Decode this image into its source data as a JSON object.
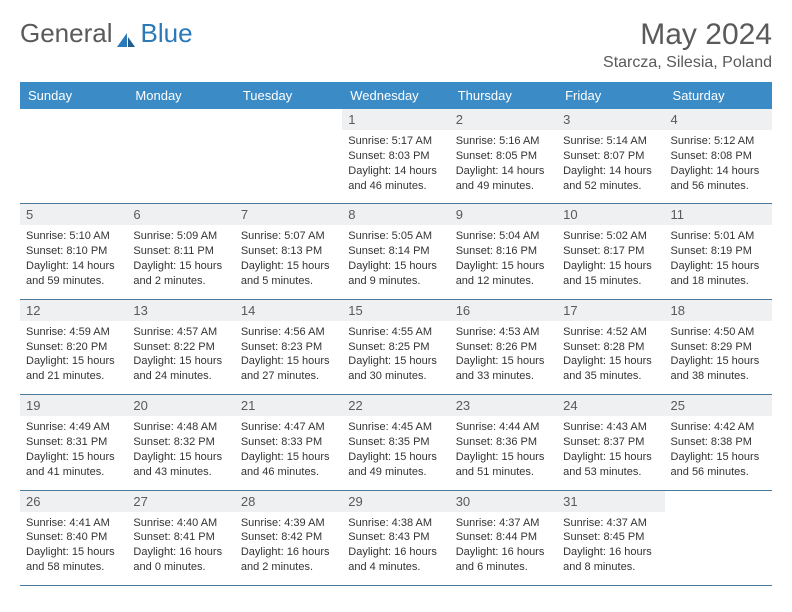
{
  "brand": {
    "part1": "General",
    "part2": "Blue"
  },
  "header": {
    "month": "May 2024",
    "location": "Starcza, Silesia, Poland"
  },
  "colors": {
    "header_bg": "#3b8bc7",
    "daynum_bg": "#eef0f1",
    "border": "#4a7a9a"
  },
  "weekdays": [
    "Sunday",
    "Monday",
    "Tuesday",
    "Wednesday",
    "Thursday",
    "Friday",
    "Saturday"
  ],
  "weeks": [
    [
      {
        "n": "",
        "sr": "",
        "ss": "",
        "dl": ""
      },
      {
        "n": "",
        "sr": "",
        "ss": "",
        "dl": ""
      },
      {
        "n": "",
        "sr": "",
        "ss": "",
        "dl": ""
      },
      {
        "n": "1",
        "sr": "Sunrise: 5:17 AM",
        "ss": "Sunset: 8:03 PM",
        "dl": "Daylight: 14 hours and 46 minutes."
      },
      {
        "n": "2",
        "sr": "Sunrise: 5:16 AM",
        "ss": "Sunset: 8:05 PM",
        "dl": "Daylight: 14 hours and 49 minutes."
      },
      {
        "n": "3",
        "sr": "Sunrise: 5:14 AM",
        "ss": "Sunset: 8:07 PM",
        "dl": "Daylight: 14 hours and 52 minutes."
      },
      {
        "n": "4",
        "sr": "Sunrise: 5:12 AM",
        "ss": "Sunset: 8:08 PM",
        "dl": "Daylight: 14 hours and 56 minutes."
      }
    ],
    [
      {
        "n": "5",
        "sr": "Sunrise: 5:10 AM",
        "ss": "Sunset: 8:10 PM",
        "dl": "Daylight: 14 hours and 59 minutes."
      },
      {
        "n": "6",
        "sr": "Sunrise: 5:09 AM",
        "ss": "Sunset: 8:11 PM",
        "dl": "Daylight: 15 hours and 2 minutes."
      },
      {
        "n": "7",
        "sr": "Sunrise: 5:07 AM",
        "ss": "Sunset: 8:13 PM",
        "dl": "Daylight: 15 hours and 5 minutes."
      },
      {
        "n": "8",
        "sr": "Sunrise: 5:05 AM",
        "ss": "Sunset: 8:14 PM",
        "dl": "Daylight: 15 hours and 9 minutes."
      },
      {
        "n": "9",
        "sr": "Sunrise: 5:04 AM",
        "ss": "Sunset: 8:16 PM",
        "dl": "Daylight: 15 hours and 12 minutes."
      },
      {
        "n": "10",
        "sr": "Sunrise: 5:02 AM",
        "ss": "Sunset: 8:17 PM",
        "dl": "Daylight: 15 hours and 15 minutes."
      },
      {
        "n": "11",
        "sr": "Sunrise: 5:01 AM",
        "ss": "Sunset: 8:19 PM",
        "dl": "Daylight: 15 hours and 18 minutes."
      }
    ],
    [
      {
        "n": "12",
        "sr": "Sunrise: 4:59 AM",
        "ss": "Sunset: 8:20 PM",
        "dl": "Daylight: 15 hours and 21 minutes."
      },
      {
        "n": "13",
        "sr": "Sunrise: 4:57 AM",
        "ss": "Sunset: 8:22 PM",
        "dl": "Daylight: 15 hours and 24 minutes."
      },
      {
        "n": "14",
        "sr": "Sunrise: 4:56 AM",
        "ss": "Sunset: 8:23 PM",
        "dl": "Daylight: 15 hours and 27 minutes."
      },
      {
        "n": "15",
        "sr": "Sunrise: 4:55 AM",
        "ss": "Sunset: 8:25 PM",
        "dl": "Daylight: 15 hours and 30 minutes."
      },
      {
        "n": "16",
        "sr": "Sunrise: 4:53 AM",
        "ss": "Sunset: 8:26 PM",
        "dl": "Daylight: 15 hours and 33 minutes."
      },
      {
        "n": "17",
        "sr": "Sunrise: 4:52 AM",
        "ss": "Sunset: 8:28 PM",
        "dl": "Daylight: 15 hours and 35 minutes."
      },
      {
        "n": "18",
        "sr": "Sunrise: 4:50 AM",
        "ss": "Sunset: 8:29 PM",
        "dl": "Daylight: 15 hours and 38 minutes."
      }
    ],
    [
      {
        "n": "19",
        "sr": "Sunrise: 4:49 AM",
        "ss": "Sunset: 8:31 PM",
        "dl": "Daylight: 15 hours and 41 minutes."
      },
      {
        "n": "20",
        "sr": "Sunrise: 4:48 AM",
        "ss": "Sunset: 8:32 PM",
        "dl": "Daylight: 15 hours and 43 minutes."
      },
      {
        "n": "21",
        "sr": "Sunrise: 4:47 AM",
        "ss": "Sunset: 8:33 PM",
        "dl": "Daylight: 15 hours and 46 minutes."
      },
      {
        "n": "22",
        "sr": "Sunrise: 4:45 AM",
        "ss": "Sunset: 8:35 PM",
        "dl": "Daylight: 15 hours and 49 minutes."
      },
      {
        "n": "23",
        "sr": "Sunrise: 4:44 AM",
        "ss": "Sunset: 8:36 PM",
        "dl": "Daylight: 15 hours and 51 minutes."
      },
      {
        "n": "24",
        "sr": "Sunrise: 4:43 AM",
        "ss": "Sunset: 8:37 PM",
        "dl": "Daylight: 15 hours and 53 minutes."
      },
      {
        "n": "25",
        "sr": "Sunrise: 4:42 AM",
        "ss": "Sunset: 8:38 PM",
        "dl": "Daylight: 15 hours and 56 minutes."
      }
    ],
    [
      {
        "n": "26",
        "sr": "Sunrise: 4:41 AM",
        "ss": "Sunset: 8:40 PM",
        "dl": "Daylight: 15 hours and 58 minutes."
      },
      {
        "n": "27",
        "sr": "Sunrise: 4:40 AM",
        "ss": "Sunset: 8:41 PM",
        "dl": "Daylight: 16 hours and 0 minutes."
      },
      {
        "n": "28",
        "sr": "Sunrise: 4:39 AM",
        "ss": "Sunset: 8:42 PM",
        "dl": "Daylight: 16 hours and 2 minutes."
      },
      {
        "n": "29",
        "sr": "Sunrise: 4:38 AM",
        "ss": "Sunset: 8:43 PM",
        "dl": "Daylight: 16 hours and 4 minutes."
      },
      {
        "n": "30",
        "sr": "Sunrise: 4:37 AM",
        "ss": "Sunset: 8:44 PM",
        "dl": "Daylight: 16 hours and 6 minutes."
      },
      {
        "n": "31",
        "sr": "Sunrise: 4:37 AM",
        "ss": "Sunset: 8:45 PM",
        "dl": "Daylight: 16 hours and 8 minutes."
      },
      {
        "n": "",
        "sr": "",
        "ss": "",
        "dl": ""
      }
    ]
  ]
}
